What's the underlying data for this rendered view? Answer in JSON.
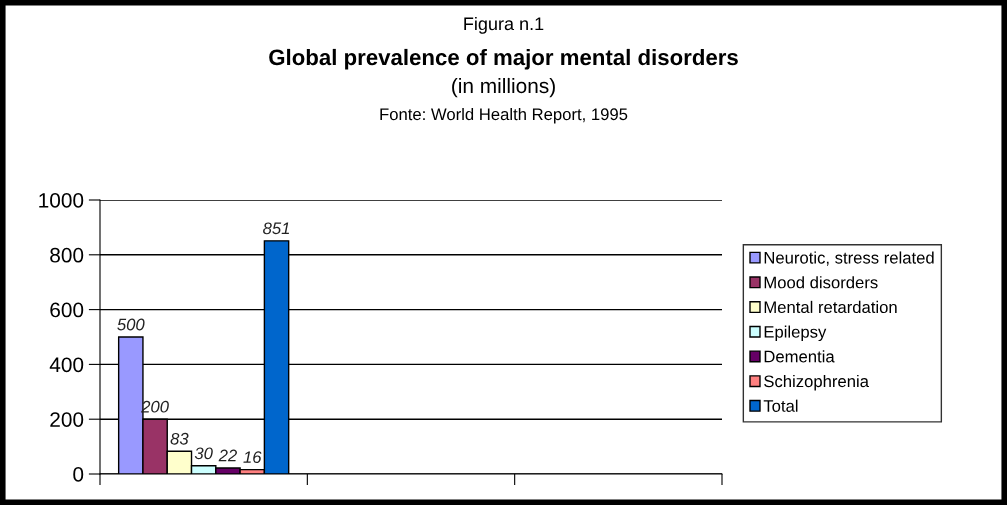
{
  "chart_data": {
    "type": "bar",
    "title": "Global prevalence of major mental disorders",
    "subtitle": "(in millions)",
    "annotations": [
      "Figura n.1",
      "Fonte: World Health Report, 1995"
    ],
    "categories": [
      null,
      null,
      null
    ],
    "series": [
      {
        "name": "Neurotic, stress related",
        "color": "#9999ff",
        "values": [
          500,
          null,
          null
        ]
      },
      {
        "name": "Mood disorders",
        "color": "#993366",
        "values": [
          200,
          null,
          null
        ]
      },
      {
        "name": "Mental retardation",
        "color": "#ffffcc",
        "values": [
          83,
          null,
          null
        ]
      },
      {
        "name": "Epilepsy",
        "color": "#ccffff",
        "values": [
          30,
          null,
          null
        ]
      },
      {
        "name": "Dementia",
        "color": "#660066",
        "values": [
          22,
          null,
          null
        ]
      },
      {
        "name": "Schizophrenia",
        "color": "#ff8080",
        "values": [
          16,
          null,
          null
        ]
      },
      {
        "name": "Total",
        "color": "#0066cc",
        "values": [
          851,
          null,
          null
        ]
      }
    ],
    "ylim": [
      0,
      1000
    ],
    "yticks": [
      0,
      200,
      400,
      600,
      800,
      1000
    ],
    "grid": "y",
    "legend": "right",
    "data_labels": true,
    "tick_labels": "y"
  }
}
